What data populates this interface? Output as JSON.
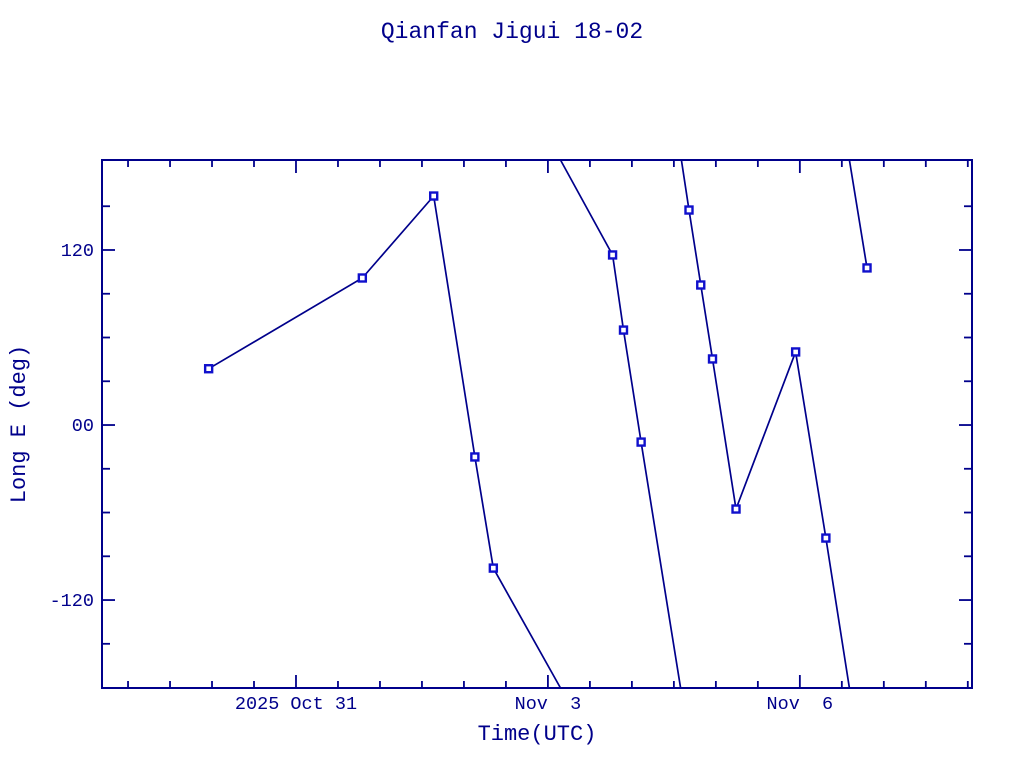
{
  "page": {
    "background": "#ffffff"
  },
  "colors": {
    "accent_navy": "#00008B",
    "line": "#00008B",
    "frame": "#00008B",
    "text": "#00008B",
    "marker": "#1010CC",
    "marker_center": "#ffffff"
  },
  "chart_data": {
    "type": "line",
    "title": "Qianfan Jigui 18-02",
    "xlabel": "Time(UTC)",
    "ylabel": "Long E (deg)",
    "grid": "off",
    "legend": "none",
    "x_axis_note": "x values are days relative to the 2025 Oct 31 major tick",
    "xlim": [
      -2.31,
      8.05
    ],
    "ylim": [
      -180.3,
      181.7
    ],
    "x_minor_step": 0.5,
    "y_minor_step": 30,
    "x_major_ticks": [
      {
        "t": 0,
        "label": "2025 Oct 31"
      },
      {
        "t": 3,
        "label": "Nov  3"
      },
      {
        "t": 6,
        "label": "Nov  6"
      }
    ],
    "y_major_ticks": [
      {
        "v": 120,
        "label": "120"
      },
      {
        "v": 0,
        "label": "00"
      },
      {
        "v": -120,
        "label": "-120"
      }
    ],
    "series": [
      {
        "name": "longitude-track-segment-1",
        "points": [
          {
            "t": -1.04,
            "lon": 38.6,
            "marker": true
          },
          {
            "t": 0.79,
            "lon": 100.8,
            "marker": true
          },
          {
            "t": 1.64,
            "lon": 157.0,
            "marker": true
          },
          {
            "t": 2.13,
            "lon": -21.9,
            "marker": true
          },
          {
            "t": 2.35,
            "lon": -98.1,
            "marker": true
          },
          {
            "t": 3.15,
            "lon": -180.3,
            "marker": false
          }
        ]
      },
      {
        "name": "longitude-track-segment-2",
        "points": [
          {
            "t": 3.15,
            "lon": 181.7,
            "marker": false
          },
          {
            "t": 3.77,
            "lon": 116.6,
            "marker": true
          },
          {
            "t": 3.9,
            "lon": 65.1,
            "marker": true
          },
          {
            "t": 4.11,
            "lon": -11.7,
            "marker": true
          },
          {
            "t": 4.58,
            "lon": -180.3,
            "marker": false
          }
        ]
      },
      {
        "name": "longitude-track-segment-3",
        "points": [
          {
            "t": 4.59,
            "lon": 181.7,
            "marker": false
          },
          {
            "t": 4.68,
            "lon": 147.4,
            "marker": true
          },
          {
            "t": 4.82,
            "lon": 96.0,
            "marker": true
          },
          {
            "t": 4.96,
            "lon": 45.3,
            "marker": true
          },
          {
            "t": 5.24,
            "lon": -57.6,
            "marker": true
          },
          {
            "t": 5.95,
            "lon": 50.1,
            "marker": true
          },
          {
            "t": 6.31,
            "lon": -77.5,
            "marker": true
          },
          {
            "t": 6.59,
            "lon": -180.3,
            "marker": false
          }
        ]
      },
      {
        "name": "longitude-track-segment-4",
        "points": [
          {
            "t": 6.59,
            "lon": 181.7,
            "marker": false
          },
          {
            "t": 6.8,
            "lon": 107.7,
            "marker": true
          }
        ]
      }
    ]
  }
}
